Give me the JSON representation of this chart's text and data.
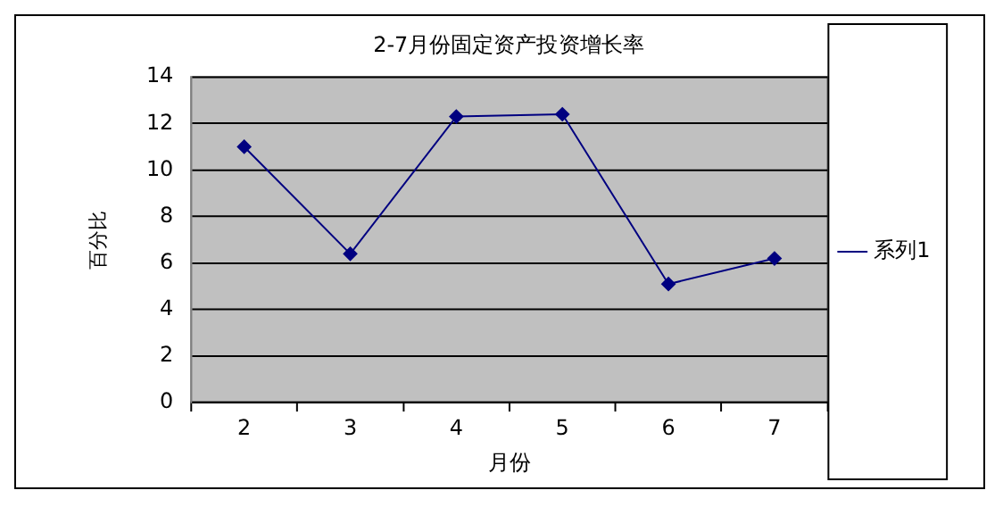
{
  "chart_data": {
    "type": "line",
    "title": "2-7月份固定资产投资增长率",
    "xlabel": "月份",
    "ylabel": "百分比",
    "categories": [
      "2",
      "3",
      "4",
      "5",
      "6",
      "7"
    ],
    "series": [
      {
        "name": "系列1",
        "color": "#000080",
        "values": [
          11.0,
          6.4,
          12.3,
          12.4,
          5.1,
          6.2
        ]
      }
    ],
    "ylim": [
      0,
      14
    ],
    "yticks": [
      0,
      2,
      4,
      6,
      8,
      10,
      12,
      14
    ],
    "grid": "y",
    "legend": "right",
    "marker": "diamond",
    "line_style": "solid"
  }
}
